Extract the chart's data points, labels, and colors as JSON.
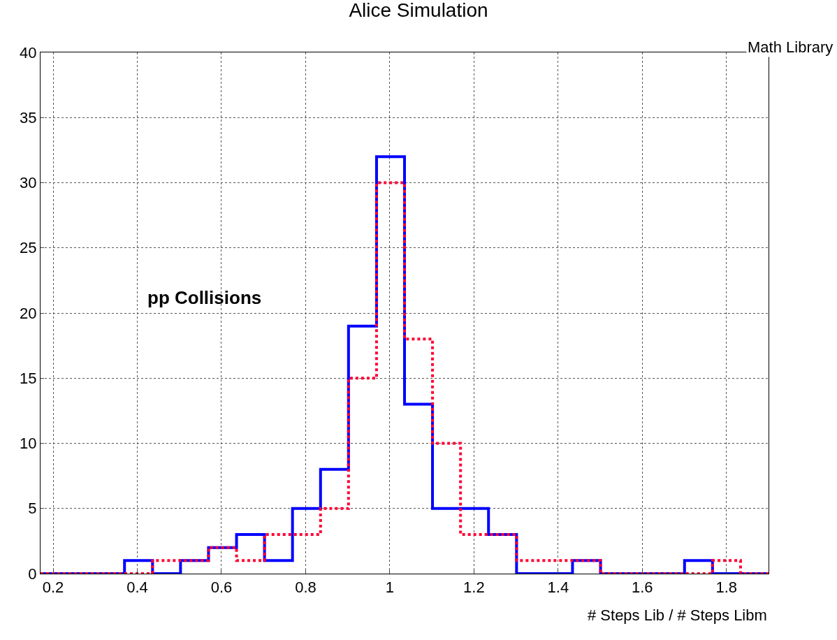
{
  "chart_data": {
    "type": "histogram",
    "title": "Alice Simulation",
    "xlabel": "# Steps Lib / # Steps Libm",
    "bins": [
      0.17,
      0.2365,
      0.3031,
      0.3696,
      0.4362,
      0.5027,
      0.5692,
      0.6358,
      0.7023,
      0.7688,
      0.8354,
      0.9019,
      0.9685,
      1.035,
      1.1015,
      1.1681,
      1.2346,
      1.3012,
      1.3677,
      1.4342,
      1.5008,
      1.5673,
      1.6338,
      1.7004,
      1.7669,
      1.8335,
      1.9
    ],
    "series": [
      {
        "color": "#0000ff",
        "line_style": "solid",
        "values": [
          0,
          0,
          0,
          1,
          0,
          1,
          2,
          3,
          1,
          5,
          8,
          19,
          32,
          13,
          5,
          5,
          3,
          0,
          0,
          1,
          0,
          0,
          0,
          1,
          0,
          0
        ]
      },
      {
        "color": "#ff0033",
        "line_style": "dotted",
        "values": [
          0,
          0,
          0,
          0,
          1,
          1,
          2,
          1,
          3,
          3,
          5,
          15,
          30,
          18,
          10,
          3,
          3,
          1,
          1,
          1,
          0,
          0,
          0,
          0,
          1,
          0
        ]
      }
    ],
    "annotations": [
      "Math Library",
      "pp Collisions"
    ],
    "xlim": [
      0.17,
      1.9
    ],
    "xticks": [
      0.2,
      0.4,
      0.6,
      0.8,
      {
        "value": 1.0,
        "label": "1"
      },
      1.2,
      1.4,
      1.6,
      1.8
    ],
    "ylim": [
      0,
      40
    ],
    "yticks": [
      0,
      5,
      10,
      15,
      20,
      25,
      30,
      35,
      40
    ],
    "grid": true
  }
}
